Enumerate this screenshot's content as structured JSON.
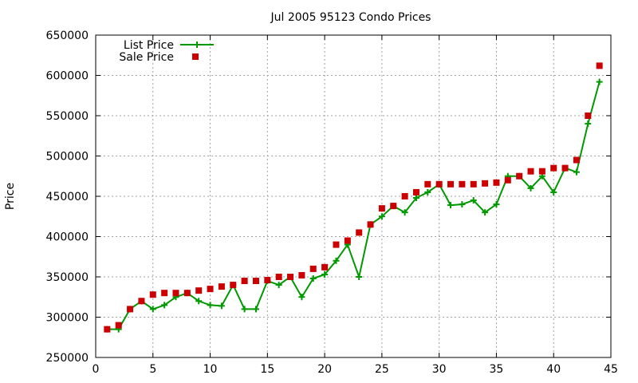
{
  "chart_data": {
    "type": "line",
    "title": "Jul 2005 95123 Condo Prices",
    "xlabel": "",
    "ylabel": "Price",
    "xlim": [
      0,
      45
    ],
    "ylim": [
      250000,
      650000
    ],
    "xticks": [
      "0",
      "5",
      "10",
      "15",
      "20",
      "25",
      "30",
      "35",
      "40",
      "45"
    ],
    "yticks": [
      "250000",
      "300000",
      "350000",
      "400000",
      "450000",
      "500000",
      "550000",
      "600000",
      "650000"
    ],
    "grid": true,
    "legend_position": "top-left",
    "x": [
      1,
      2,
      3,
      4,
      5,
      6,
      7,
      8,
      9,
      10,
      11,
      12,
      13,
      14,
      15,
      16,
      17,
      18,
      19,
      20,
      21,
      22,
      23,
      24,
      25,
      26,
      27,
      28,
      29,
      30,
      31,
      32,
      33,
      34,
      35,
      36,
      37,
      38,
      39,
      40,
      41,
      42,
      43,
      44
    ],
    "series": [
      {
        "name": "List Price",
        "style": "linespoints",
        "marker": "plus",
        "color": "#009900",
        "values": [
          285000,
          285000,
          310000,
          320000,
          310000,
          315000,
          325000,
          330000,
          320000,
          315000,
          314000,
          340000,
          310000,
          310000,
          345000,
          340000,
          350000,
          325000,
          348000,
          353000,
          370000,
          390000,
          350000,
          415000,
          425000,
          438000,
          430000,
          448000,
          455000,
          465000,
          439000,
          440000,
          445000,
          430000,
          440000,
          475000,
          475000,
          460000,
          475000,
          455000,
          485000,
          480000,
          540000,
          592000
        ]
      },
      {
        "name": "Sale Price",
        "style": "points",
        "marker": "square",
        "color": "#cc0000",
        "values": [
          285000,
          290000,
          310000,
          320000,
          328000,
          330000,
          330000,
          330000,
          333000,
          335000,
          338000,
          340000,
          345000,
          345000,
          346000,
          350000,
          350000,
          352000,
          360000,
          362000,
          390000,
          395000,
          405000,
          415000,
          435000,
          438000,
          450000,
          455000,
          465000,
          465000,
          465000,
          465000,
          465000,
          466000,
          467000,
          470000,
          475000,
          481000,
          481000,
          485000,
          485000,
          495000,
          550000,
          612000
        ]
      }
    ]
  }
}
